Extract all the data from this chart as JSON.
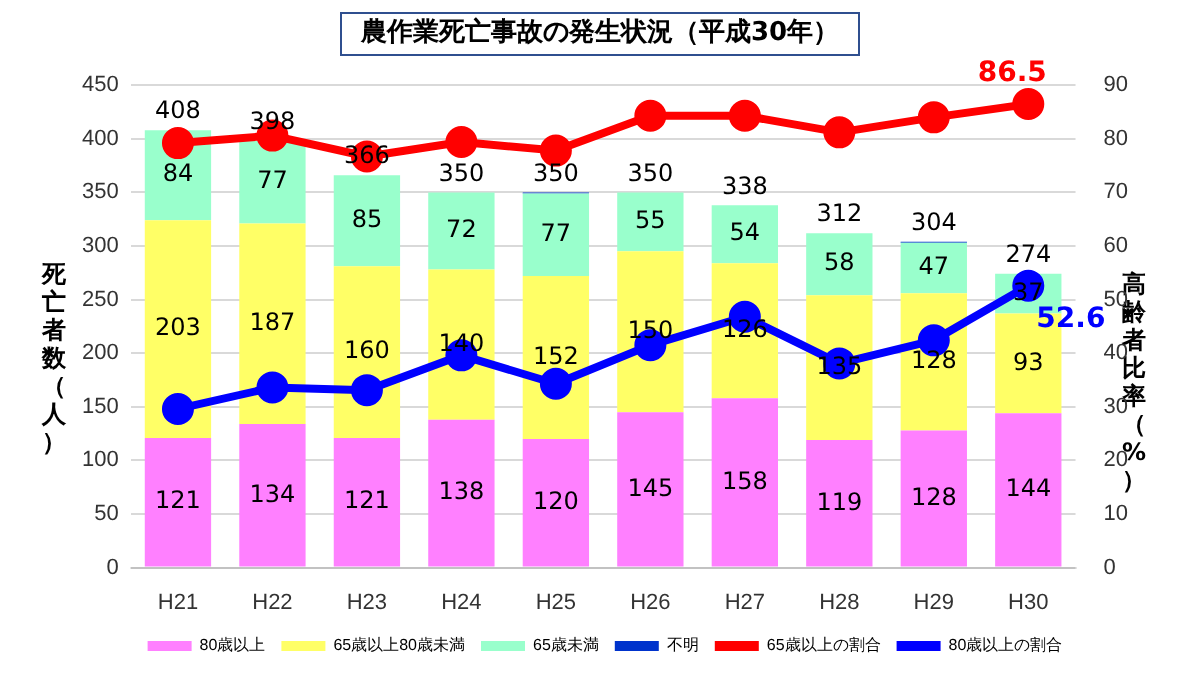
{
  "chart_data": {
    "type": "bar",
    "title": "農作業死亡事故の発生状況（平成30年）",
    "ylabel": "死亡者数（人）",
    "y2label": "高齢者比率（%）",
    "categories": [
      "H21",
      "H22",
      "H23",
      "H24",
      "H25",
      "H26",
      "H27",
      "H28",
      "H29",
      "H30"
    ],
    "stacked": true,
    "ylim": [
      0,
      450
    ],
    "yticks": [
      0,
      50,
      100,
      150,
      200,
      250,
      300,
      350,
      400,
      450
    ],
    "y2lim": [
      0,
      90
    ],
    "y2ticks": [
      0,
      10,
      20,
      30,
      40,
      50,
      60,
      70,
      80,
      90
    ],
    "grid": "y",
    "legend": "bottom",
    "marker": "circle",
    "series": [
      {
        "name": "80歳以上",
        "color": "#ff80ff",
        "values": [
          121,
          134,
          121,
          138,
          120,
          145,
          158,
          119,
          128,
          144
        ],
        "value_labels": [
          "121",
          "134",
          "121",
          "138",
          "120",
          "145",
          "158",
          "119",
          "128",
          "144"
        ]
      },
      {
        "name": "65歳以上80歳未満",
        "color": "#ffff66",
        "values": [
          203,
          187,
          160,
          140,
          152,
          150,
          126,
          135,
          128,
          93
        ],
        "value_labels": [
          "203",
          "187",
          "160",
          "140",
          "152",
          "150",
          "126",
          "135",
          "128",
          "93"
        ]
      },
      {
        "name": "65歳未満",
        "color": "#99ffcc",
        "values": [
          84,
          77,
          85,
          72,
          77,
          55,
          54,
          58,
          47,
          37
        ],
        "value_labels": [
          "84",
          "77",
          "85",
          "72",
          "77",
          "55",
          "54",
          "58",
          "47",
          "37"
        ]
      },
      {
        "name": "不明",
        "color": "#0033cc",
        "values": [
          0,
          0,
          0,
          0,
          1,
          0,
          0,
          0,
          1,
          0
        ]
      },
      {
        "name": "65歳以上の割合",
        "type": "line",
        "axis": "y2",
        "color": "#ff0000",
        "values": [
          79.2,
          80.6,
          76.7,
          79.4,
          77.8,
          84.3,
          84.3,
          81.2,
          84.0,
          86.5
        ],
        "value_labels": [
          null,
          null,
          null,
          null,
          null,
          null,
          null,
          null,
          null,
          "86.5"
        ]
      },
      {
        "name": "80歳以上の割合",
        "type": "line",
        "axis": "y2",
        "color": "#0000ff",
        "values": [
          29.6,
          33.6,
          33.1,
          39.6,
          34.3,
          41.5,
          46.8,
          38.1,
          42.4,
          52.6
        ],
        "value_labels": [
          null,
          null,
          null,
          null,
          null,
          null,
          null,
          null,
          null,
          "52.6"
        ]
      }
    ],
    "totals": [
      "408",
      "398",
      "366",
      "350",
      "350",
      "350",
      "338",
      "312",
      "304",
      "274"
    ]
  }
}
